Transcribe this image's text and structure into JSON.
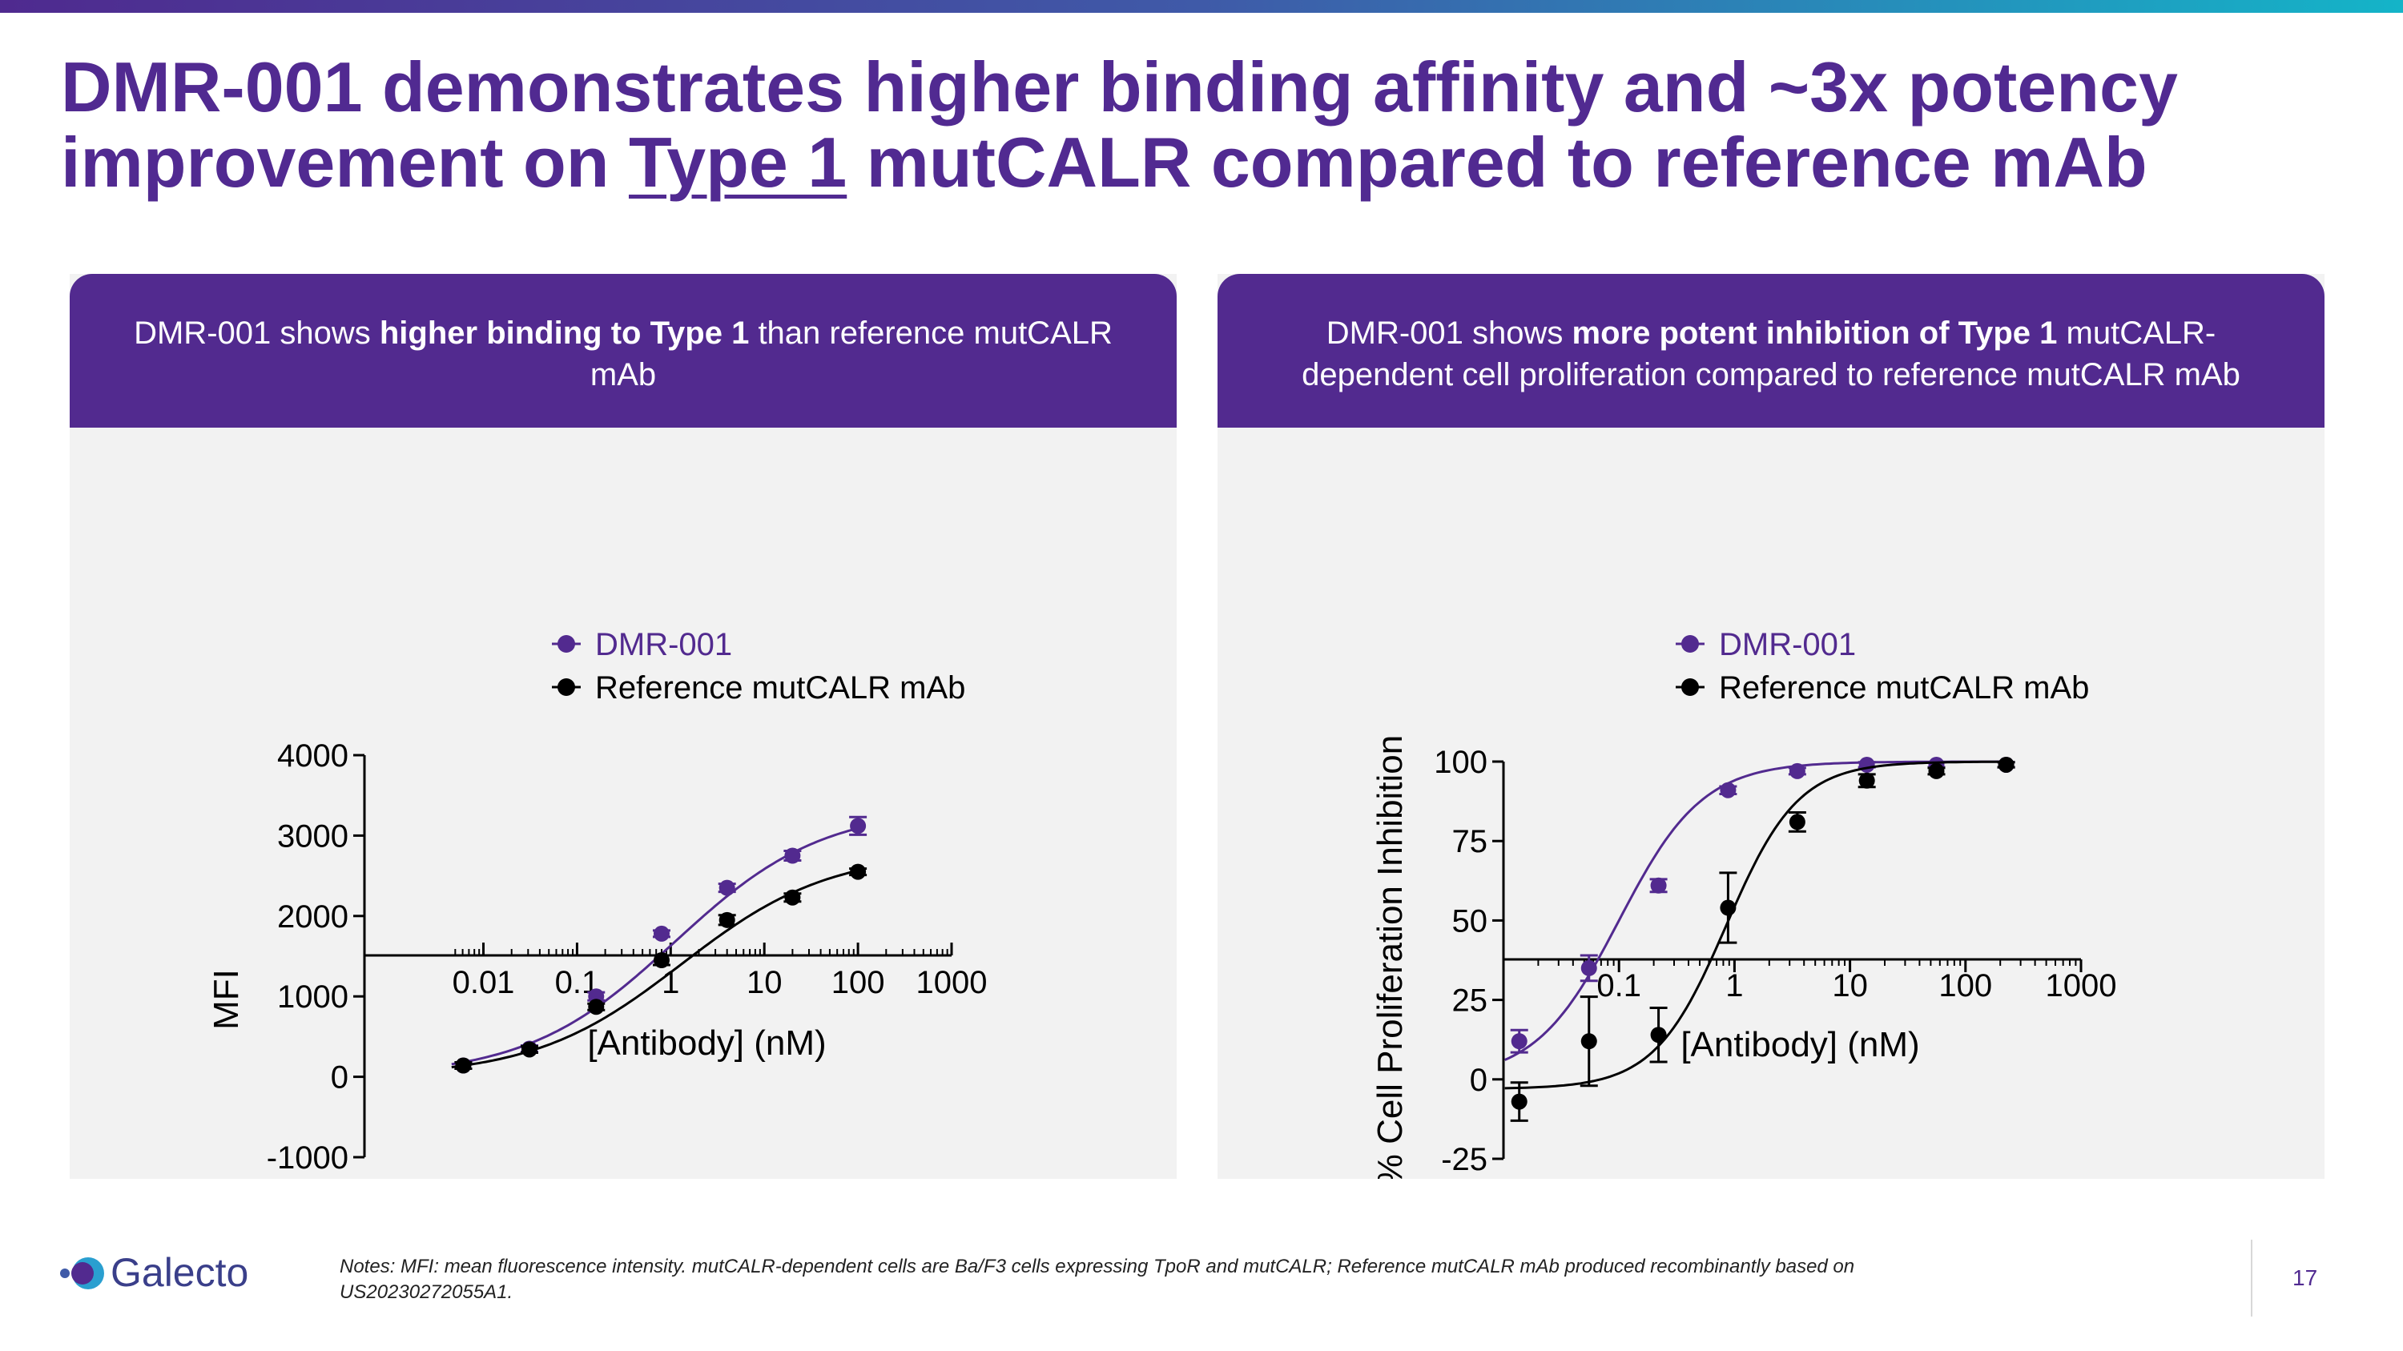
{
  "title": {
    "line1": "DMR-001 demonstrates higher binding affinity and ~3x potency",
    "line2_pre": "improvement on ",
    "line2_underlined": "Type 1",
    "line2_post": " mutCALR compared to reference mAb"
  },
  "panels": [
    {
      "header_pre": "DMR-001 shows ",
      "header_bold": "higher binding to Type 1",
      "header_post": " than reference mutCALR mAb"
    },
    {
      "header_pre": "DMR-001 shows ",
      "header_bold": "more potent inhibition of Type 1",
      "header_post": " mutCALR-dependent cell proliferation compared to reference mutCALR mAb"
    }
  ],
  "colors": {
    "purple": "#522a8f",
    "black": "#000000",
    "panel_bg": "#f2f2f2"
  },
  "chart_data": [
    {
      "type": "scatter",
      "xscale": "log",
      "xlabel": "[Antibody] (nM)",
      "ylabel": "MFI",
      "xlim": [
        0.004,
        1000
      ],
      "ylim": [
        -1000,
        4000
      ],
      "xticks": [
        0.01,
        0.1,
        1,
        10,
        100,
        1000
      ],
      "xtick_labels": [
        "0.01",
        "0.1",
        "1",
        "10",
        "100",
        "1000"
      ],
      "yticks": [
        -1000,
        0,
        1000,
        2000,
        3000,
        4000
      ],
      "ytick_labels": [
        "-1000",
        "0",
        "1000",
        "2000",
        "3000",
        "4000"
      ],
      "legend": "top-center",
      "series": [
        {
          "name": "DMR-001",
          "color": "#522a8f",
          "x": [
            0.0061,
            0.031,
            0.16,
            0.8,
            4,
            20,
            100
          ],
          "y": [
            140,
            350,
            1000,
            1780,
            2350,
            2750,
            3120
          ],
          "err": [
            40,
            40,
            50,
            40,
            50,
            60,
            110
          ],
          "fit": {
            "bottom": 0,
            "top": 3350,
            "ec50": 1.1,
            "hill": 0.55
          }
        },
        {
          "name": "Reference mutCALR mAb",
          "color": "#000000",
          "x": [
            0.0061,
            0.031,
            0.16,
            0.8,
            4,
            20,
            100
          ],
          "y": [
            140,
            340,
            870,
            1450,
            1950,
            2230,
            2550
          ],
          "err": [
            40,
            40,
            40,
            60,
            60,
            50,
            40
          ],
          "fit": {
            "bottom": 0,
            "top": 2800,
            "ec50": 1.3,
            "hill": 0.55
          }
        }
      ]
    },
    {
      "type": "scatter",
      "xscale": "log",
      "xlabel": "[Antibody] (nM)",
      "ylabel": "% Cell Proliferation Inhibition",
      "xlim": [
        0.01,
        1000
      ],
      "ylim": [
        -25,
        100
      ],
      "xticks": [
        0.1,
        1,
        10,
        100,
        1000
      ],
      "xtick_labels": [
        "0.1",
        "1",
        "10",
        "100",
        "1000"
      ],
      "yticks": [
        -25,
        0,
        25,
        50,
        75,
        100
      ],
      "ytick_labels": [
        "-25",
        "0",
        "25",
        "50",
        "75",
        "100"
      ],
      "legend": "top-center",
      "series": [
        {
          "name": "DMR-001",
          "color": "#522a8f",
          "x": [
            0.0137,
            0.055,
            0.22,
            0.88,
            3.5,
            14,
            56,
            225
          ],
          "y": [
            12,
            35,
            61,
            91,
            97,
            99,
            99,
            99
          ],
          "err": [
            3.5,
            4,
            2,
            1.2,
            1,
            0.8,
            0.8,
            0.8
          ],
          "fit": {
            "bottom": 0,
            "top": 100,
            "ec50": 0.1,
            "hill": 1.2
          }
        },
        {
          "name": "Reference mutCALR mAb",
          "color": "#000000",
          "x": [
            0.0137,
            0.055,
            0.22,
            0.88,
            3.5,
            14,
            56,
            225
          ],
          "y": [
            -7,
            12,
            14,
            54,
            81,
            94,
            97,
            99
          ],
          "err": [
            6,
            14,
            8.5,
            11,
            3,
            2,
            1,
            0.8
          ],
          "fit": {
            "bottom": -3,
            "top": 100,
            "ec50": 0.85,
            "hill": 1.4
          }
        }
      ]
    }
  ],
  "footer": {
    "logo_text": "Galecto",
    "notes": "Notes: MFI: mean fluorescence intensity. mutCALR-dependent cells are Ba/F3 cells expressing TpoR and mutCALR; Reference mutCALR mAb produced recombinantly based on US20230272055A1.",
    "page_number": "17"
  }
}
